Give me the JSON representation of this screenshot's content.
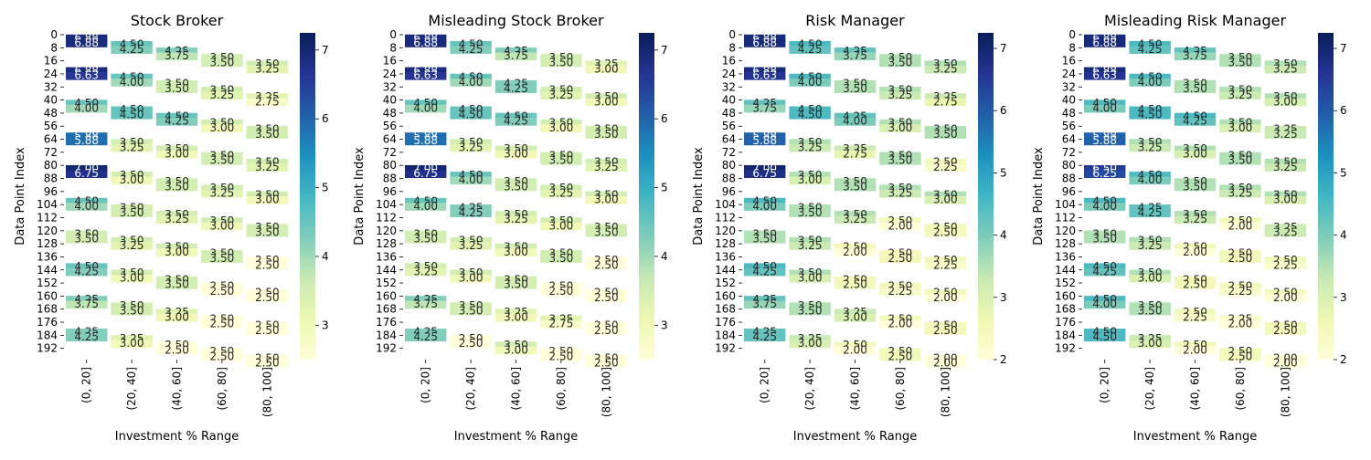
{
  "chart_data": [
    {
      "type": "heatmap",
      "title": "Stock Broker",
      "xlabel": "Investment % Range",
      "ylabel": "Data Point Index",
      "x_categories": [
        "(0, 20]",
        "(20, 40]",
        "(40, 60]",
        "(60, 80]",
        "(80, 100]"
      ],
      "y_ticks": [
        0,
        8,
        16,
        24,
        32,
        40,
        48,
        56,
        64,
        72,
        80,
        88,
        96,
        104,
        112,
        120,
        128,
        136,
        144,
        152,
        160,
        168,
        176,
        184,
        192
      ],
      "colorbar": {
        "min": 2.5,
        "max": 7.25,
        "ticks": [
          3,
          4,
          5,
          6,
          7
        ]
      },
      "groups": [
        [
          6.88,
          4.5,
          4.25,
          3.5,
          3.5
        ],
        [
          6.88,
          4.5,
          3.5,
          3.5,
          3.25
        ],
        [
          4.5,
          4.5,
          4.5,
          3.5,
          3.5
        ],
        [
          5.88,
          3.5,
          3.5,
          3.5,
          3.5
        ],
        [
          7.0,
          3.5,
          3.5,
          3.5,
          3.5
        ],
        [
          4.5,
          3.5,
          3.5,
          3.5,
          3.5
        ],
        [
          3.5,
          3.5,
          3.5,
          3.5,
          2.5
        ],
        [
          4.5,
          3.5,
          3.5,
          2.5,
          2.5
        ],
        [
          4.25,
          3.5,
          3.25,
          2.5,
          2.5
        ],
        [
          4.25,
          3.25,
          2.5,
          2.5,
          2.5
        ]
      ]
    },
    {
      "type": "heatmap",
      "title": "Misleading Stock Broker",
      "xlabel": "Investment % Range",
      "ylabel": "Data Point Index",
      "x_categories": [
        "(0, 20]",
        "(20, 40]",
        "(40, 60]",
        "(60, 80]",
        "(80, 100]"
      ],
      "y_ticks": [
        0,
        8,
        16,
        24,
        32,
        40,
        48,
        56,
        64,
        72,
        80,
        88,
        96,
        104,
        112,
        120,
        128,
        136,
        144,
        152,
        160,
        168,
        176,
        184,
        192
      ],
      "colorbar": {
        "min": 2.5,
        "max": 7.25,
        "ticks": [
          3,
          4,
          5,
          6,
          7
        ]
      },
      "groups": [
        [
          6.88,
          4.5,
          4.25,
          3.5,
          3.25
        ],
        [
          6.88,
          4.5,
          4.25,
          3.5,
          3.5
        ],
        [
          4.5,
          4.5,
          4.5,
          3.5,
          3.5
        ],
        [
          5.88,
          3.5,
          3.5,
          3.5,
          3.5
        ],
        [
          7.0,
          4.5,
          3.5,
          3.5,
          3.5
        ],
        [
          4.5,
          4.25,
          3.5,
          3.5,
          3.5
        ],
        [
          3.5,
          3.5,
          3.5,
          3.5,
          2.5
        ],
        [
          3.5,
          3.5,
          3.5,
          2.5,
          2.5
        ],
        [
          4.25,
          3.5,
          3.25,
          3.25,
          2.5
        ],
        [
          4.25,
          2.5,
          3.5,
          2.5,
          2.5
        ]
      ]
    },
    {
      "type": "heatmap",
      "title": "Risk Manager",
      "xlabel": "Investment % Range",
      "ylabel": "Data Point Index",
      "x_categories": [
        "(0, 20]",
        "(20, 40]",
        "(40, 60]",
        "(60, 80]",
        "(80, 100]"
      ],
      "y_ticks": [
        0,
        8,
        16,
        24,
        32,
        40,
        48,
        56,
        64,
        72,
        80,
        88,
        96,
        104,
        112,
        120,
        128,
        136,
        144,
        152,
        160,
        168,
        176,
        184,
        192
      ],
      "colorbar": {
        "min": 2.0,
        "max": 7.25,
        "ticks": [
          2,
          3,
          4,
          5,
          6,
          7
        ]
      },
      "groups": [
        [
          6.88,
          4.5,
          4.25,
          3.5,
          3.5
        ],
        [
          6.88,
          4.5,
          3.5,
          3.5,
          3.25
        ],
        [
          4.25,
          4.5,
          4.25,
          3.5,
          3.5
        ],
        [
          5.88,
          3.5,
          3.25,
          3.5,
          2.5
        ],
        [
          7.0,
          3.5,
          3.5,
          3.5,
          3.5
        ],
        [
          4.5,
          3.5,
          3.5,
          2.5,
          2.5
        ],
        [
          3.5,
          3.5,
          2.5,
          2.5,
          2.5
        ],
        [
          4.5,
          3.5,
          2.5,
          2.5,
          2.5
        ],
        [
          4.25,
          3.5,
          3.25,
          2.5,
          2.5
        ],
        [
          4.25,
          3.25,
          2.5,
          2.5,
          2.0
        ]
      ]
    },
    {
      "type": "heatmap",
      "title": "Misleading Risk Manager",
      "xlabel": "Investment % Range",
      "ylabel": "Data Point Index",
      "x_categories": [
        "(0, 20]",
        "(20, 40]",
        "(40, 60]",
        "(60, 80]",
        "(80, 100]"
      ],
      "y_ticks": [
        0,
        8,
        16,
        24,
        32,
        40,
        48,
        56,
        64,
        72,
        80,
        88,
        96,
        104,
        112,
        120,
        128,
        136,
        144,
        152,
        160,
        168,
        176,
        184,
        192
      ],
      "colorbar": {
        "min": 2.0,
        "max": 7.25,
        "ticks": [
          2,
          3,
          4,
          5,
          6,
          7
        ]
      },
      "groups": [
        [
          6.88,
          4.5,
          4.25,
          3.5,
          3.5
        ],
        [
          6.88,
          4.5,
          3.5,
          3.5,
          3.5
        ],
        [
          4.5,
          4.5,
          4.5,
          3.5,
          3.25
        ],
        [
          5.88,
          3.5,
          3.5,
          3.5,
          3.5
        ],
        [
          6.5,
          4.5,
          3.5,
          3.5,
          3.5
        ],
        [
          4.5,
          4.25,
          3.5,
          2.5,
          3.25
        ],
        [
          3.5,
          3.5,
          2.5,
          2.5,
          2.5
        ],
        [
          4.5,
          3.5,
          2.5,
          2.5,
          2.5
        ],
        [
          4.5,
          3.5,
          2.5,
          2.25,
          2.5
        ],
        [
          4.5,
          3.25,
          2.5,
          2.5,
          2.0
        ]
      ]
    }
  ]
}
